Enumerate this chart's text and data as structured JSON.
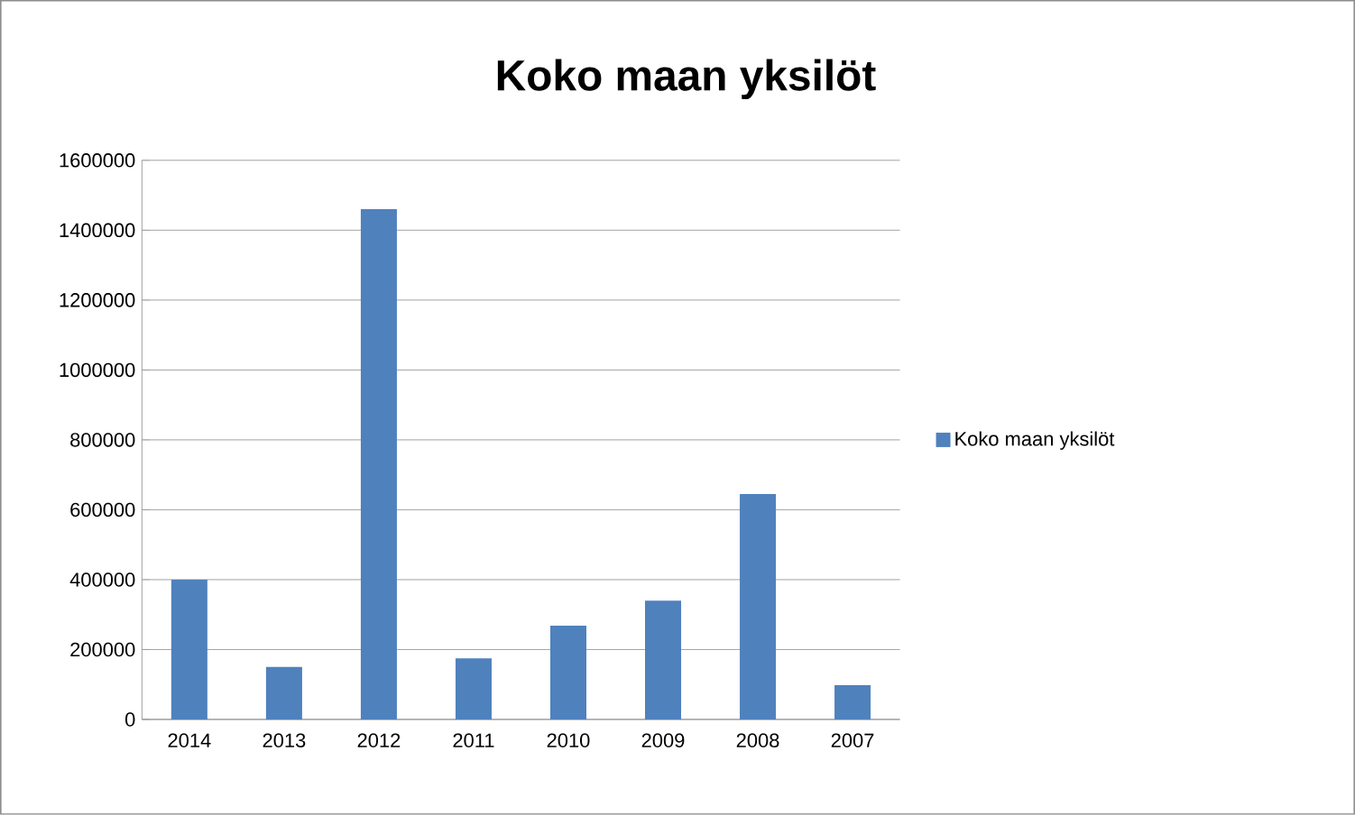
{
  "chart_data": {
    "type": "bar",
    "title": "Koko maan yksilöt",
    "categories": [
      "2014",
      "2013",
      "2012",
      "2011",
      "2010",
      "2009",
      "2008",
      "2007"
    ],
    "series": [
      {
        "name": "Koko maan yksilöt",
        "color": "#4f81bd",
        "values": [
          400000,
          150000,
          1460000,
          175000,
          268000,
          340000,
          645000,
          98000
        ]
      }
    ],
    "ylim": [
      0,
      1600000
    ],
    "yticks": [
      0,
      200000,
      400000,
      600000,
      800000,
      1000000,
      1200000,
      1400000,
      1600000
    ],
    "grid": "y",
    "legend": "right"
  }
}
